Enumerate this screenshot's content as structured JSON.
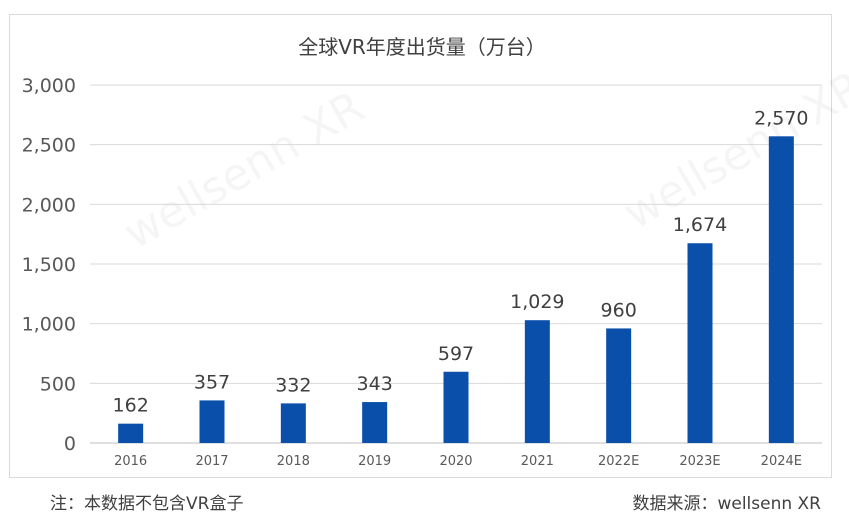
{
  "chart_data": {
    "type": "bar",
    "title": "全球VR年度出货量（万台）",
    "categories": [
      "2016",
      "2017",
      "2018",
      "2019",
      "2020",
      "2021",
      "2022E",
      "2023E",
      "2024E"
    ],
    "values": [
      162,
      357,
      332,
      343,
      597,
      1029,
      960,
      1674,
      2570
    ],
    "value_labels": [
      "162",
      "357",
      "332",
      "343",
      "597",
      "1,029",
      "960",
      "1,674",
      "2,570"
    ],
    "ylim": [
      0,
      3000
    ],
    "yticks": [
      0,
      500,
      1000,
      1500,
      2000,
      2500,
      3000
    ],
    "ytick_labels": [
      "0",
      "500",
      "1,000",
      "1,500",
      "2,000",
      "2,500",
      "3,000"
    ],
    "xlabel": "",
    "ylabel": "",
    "grid": true,
    "legend": "none",
    "bar_color": "#0a4faa"
  },
  "watermark": "wellsenn XR",
  "footer": {
    "note": "注：本数据不包含VR盒子",
    "source": "数据来源：wellsenn XR"
  }
}
